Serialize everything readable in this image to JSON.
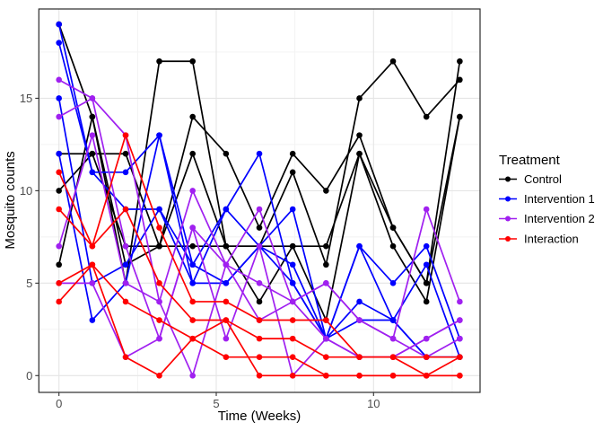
{
  "chart_data": {
    "type": "line",
    "title": "",
    "xlabel": "Time (Weeks)",
    "ylabel": "Mosquito counts",
    "legend_title": "Treatment",
    "legend_position": "right",
    "grid": "on",
    "x_ticks": [
      0,
      5,
      10
    ],
    "x_minor_ticks": [
      2.5,
      7.5,
      12.5
    ],
    "y_ticks": [
      0,
      5,
      10,
      15
    ],
    "y_minor_ticks": [
      2.5,
      7.5,
      12.5,
      17.5
    ],
    "xlim": [
      -0.64,
      13.4
    ],
    "ylim": [
      -0.95,
      19.95
    ],
    "times_weeks": [
      0,
      1.06,
      2.12,
      3.19,
      4.25,
      5.31,
      6.37,
      7.43,
      8.49,
      9.55,
      10.62,
      11.68,
      12.74
    ],
    "groups": [
      {
        "name": "Control",
        "color": "#000000",
        "lines": [
          [
            19,
            14,
            5,
            17,
            17,
            7,
            7,
            11,
            6,
            15,
            17,
            14,
            16
          ],
          [
            12,
            12,
            12,
            7,
            14,
            12,
            8,
            12,
            10,
            13,
            8,
            5,
            14
          ],
          [
            10,
            12,
            7,
            7,
            7,
            7,
            4,
            7,
            7,
            12,
            7,
            4,
            14
          ],
          [
            6,
            14,
            6,
            7,
            12,
            7,
            7,
            7,
            3,
            12,
            8,
            5,
            17
          ]
        ]
      },
      {
        "name": "Intervention 1",
        "color": "#0000FF",
        "lines": [
          [
            19,
            11,
            11,
            13,
            6,
            9,
            12,
            5,
            2,
            4,
            3,
            1,
            1
          ],
          [
            18,
            11,
            9,
            9,
            5,
            5,
            7,
            9,
            2,
            7,
            5,
            7,
            2
          ],
          [
            15,
            5,
            6,
            9,
            6,
            5,
            7,
            6,
            2,
            3,
            3,
            6,
            1
          ],
          [
            12,
            3,
            5,
            13,
            5,
            9,
            7,
            5,
            2,
            7,
            3,
            1,
            1
          ]
        ]
      },
      {
        "name": "Intervention 2",
        "color": "#A020F0",
        "lines": [
          [
            16,
            15,
            13,
            4,
            10,
            6,
            9,
            4,
            5,
            3,
            2,
            9,
            4
          ],
          [
            14,
            15,
            7,
            2,
            8,
            2,
            7,
            0,
            2,
            1,
            1,
            2,
            3
          ],
          [
            7,
            13,
            5,
            4,
            0,
            6,
            3,
            4,
            5,
            3,
            2,
            1,
            2
          ],
          [
            5,
            5,
            1,
            2,
            8,
            6,
            5,
            4,
            2,
            1,
            1,
            2,
            3
          ]
        ]
      },
      {
        "name": "Interaction",
        "color": "#FF0000",
        "lines": [
          [
            9,
            7,
            13,
            8,
            4,
            4,
            3,
            3,
            3,
            1,
            1,
            1,
            1
          ],
          [
            11,
            7,
            9,
            5,
            3,
            3,
            2,
            2,
            1,
            1,
            1,
            0,
            1
          ],
          [
            5,
            6,
            4,
            3,
            2,
            1,
            1,
            1,
            0,
            0,
            0,
            0,
            0
          ],
          [
            4,
            6,
            1,
            0,
            2,
            3,
            0,
            0,
            0,
            0,
            0,
            0,
            0
          ]
        ]
      }
    ],
    "style": {
      "panel_bg": "#FFFFFF",
      "panel_border": "#2B2B2B",
      "grid_major": "#E5E5E5",
      "grid_minor": "#F2F2F2",
      "tick_color": "#333333",
      "tick_label_color": "#4D4D4D",
      "tick_label_size": 13,
      "point_radius": 3.3,
      "line_width": 1.7
    }
  }
}
